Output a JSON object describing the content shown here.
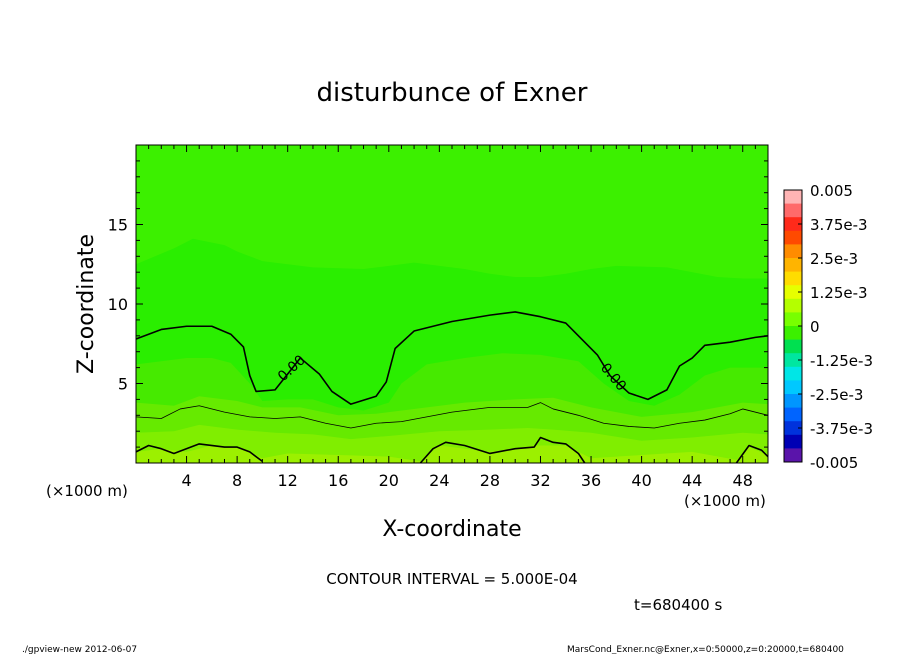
{
  "chart_data": {
    "type": "contour",
    "title": "disturbunce of Exner",
    "xlabel": "X-coordinate",
    "ylabel": "Z-coordinate",
    "x_unit_left": "(×1000 m)",
    "x_unit_right": "(×1000 m)",
    "xlim": [
      0,
      50
    ],
    "ylim": [
      0,
      20
    ],
    "x_ticks": [
      4,
      8,
      12,
      16,
      20,
      24,
      28,
      32,
      36,
      40,
      44,
      48
    ],
    "y_ticks": [
      5,
      10,
      15
    ],
    "contour_interval_text": "CONTOUR INTERVAL = 5.000E-04",
    "time_text": "t=680400 s",
    "contour_labels": [
      "0.00",
      "0.00"
    ],
    "colorbar": {
      "labels": [
        "0.005",
        "3.75e-3",
        "2.5e-3",
        "1.25e-3",
        "0",
        "-1.25e-3",
        "-2.5e-3",
        "-3.75e-3",
        "-0.005"
      ],
      "colors": [
        "#ffb4b4",
        "#ff6a6a",
        "#ff2a1a",
        "#ff4a00",
        "#ff8c00",
        "#ffb400",
        "#ffdc00",
        "#e6ff00",
        "#b4ff00",
        "#78ff00",
        "#3cf000",
        "#00e050",
        "#00e6a0",
        "#00e6e6",
        "#00c8ff",
        "#0096ff",
        "#0064ff",
        "#0032dc",
        "#0000b4",
        "#5a14aa"
      ]
    },
    "contour_lines": [
      {
        "level": "0",
        "points": [
          [
            0,
            7.8
          ],
          [
            2,
            8.4
          ],
          [
            4,
            8.6
          ],
          [
            6,
            8.6
          ],
          [
            7.5,
            8.1
          ],
          [
            8.5,
            7.3
          ],
          [
            9,
            5.5
          ],
          [
            9.5,
            4.5
          ],
          [
            11,
            4.6
          ],
          [
            12,
            5.6
          ],
          [
            13,
            6.6
          ],
          [
            14.5,
            5.6
          ],
          [
            15.5,
            4.5
          ],
          [
            17,
            3.7
          ],
          [
            19,
            4.2
          ],
          [
            19.8,
            5.1
          ],
          [
            20.5,
            7.2
          ],
          [
            22,
            8.3
          ],
          [
            25,
            8.9
          ],
          [
            28,
            9.3
          ],
          [
            30,
            9.5
          ],
          [
            32,
            9.2
          ],
          [
            34,
            8.8
          ],
          [
            35.5,
            7.6
          ],
          [
            36.5,
            6.8
          ],
          [
            37.5,
            5.5
          ],
          [
            39,
            4.4
          ],
          [
            40.5,
            4.0
          ],
          [
            42,
            4.6
          ],
          [
            43,
            6.1
          ],
          [
            44,
            6.6
          ],
          [
            45,
            7.4
          ],
          [
            47,
            7.6
          ],
          [
            49,
            7.9
          ],
          [
            50,
            8.0
          ]
        ]
      },
      {
        "level": "-5e-4",
        "points": [
          [
            0,
            2.9
          ],
          [
            2,
            2.8
          ],
          [
            3.5,
            3.4
          ],
          [
            5,
            3.6
          ],
          [
            7,
            3.2
          ],
          [
            9,
            2.9
          ],
          [
            11,
            2.8
          ],
          [
            13,
            2.9
          ],
          [
            15,
            2.5
          ],
          [
            17,
            2.2
          ],
          [
            19,
            2.5
          ],
          [
            21,
            2.6
          ],
          [
            23,
            2.9
          ],
          [
            25,
            3.2
          ],
          [
            28,
            3.5
          ],
          [
            31,
            3.5
          ],
          [
            32,
            3.8
          ],
          [
            33,
            3.4
          ],
          [
            35,
            3.0
          ],
          [
            37,
            2.5
          ],
          [
            39,
            2.3
          ],
          [
            41,
            2.2
          ],
          [
            43,
            2.5
          ],
          [
            45,
            2.7
          ],
          [
            47,
            3.1
          ],
          [
            48,
            3.4
          ],
          [
            50,
            3.0
          ]
        ]
      },
      {
        "level": "-1e-3",
        "points": [
          [
            0,
            0.7
          ],
          [
            1,
            1.1
          ],
          [
            2,
            0.9
          ],
          [
            3,
            0.6
          ],
          [
            5,
            1.2
          ],
          [
            7,
            1.0
          ],
          [
            8,
            1.0
          ],
          [
            9,
            0.7
          ],
          [
            10,
            0.1
          ]
        ]
      },
      {
        "level": "-1e-3",
        "points": [
          [
            22.5,
            0.0
          ],
          [
            23.5,
            0.9
          ],
          [
            24.5,
            1.3
          ],
          [
            26,
            1.1
          ],
          [
            28,
            0.6
          ],
          [
            30,
            0.9
          ],
          [
            31.5,
            1.0
          ],
          [
            32,
            1.6
          ],
          [
            33,
            1.3
          ],
          [
            34,
            1.2
          ],
          [
            35,
            0.6
          ],
          [
            35.5,
            0.0
          ]
        ]
      },
      {
        "level": "-1e-3",
        "points": [
          [
            47.5,
            0.0
          ],
          [
            48.5,
            1.1
          ],
          [
            49.5,
            0.8
          ],
          [
            50,
            0.4
          ]
        ]
      }
    ],
    "bands": [
      {
        "color": "#2aee00",
        "level_top": "upper",
        "points": [
          [
            0,
            12.5
          ],
          [
            3,
            13.5
          ],
          [
            4.5,
            14.1
          ],
          [
            7,
            13.7
          ],
          [
            8,
            13.3
          ],
          [
            10,
            12.7
          ],
          [
            14,
            12.3
          ],
          [
            18,
            12.2
          ],
          [
            20,
            12.4
          ],
          [
            22,
            12.6
          ],
          [
            24,
            12.4
          ],
          [
            26,
            12.2
          ],
          [
            28,
            11.9
          ],
          [
            30,
            11.7
          ],
          [
            32,
            11.7
          ],
          [
            34,
            11.9
          ],
          [
            36,
            12.2
          ],
          [
            38,
            12.4
          ],
          [
            42,
            12.3
          ],
          [
            46,
            11.7
          ],
          [
            48,
            11.6
          ],
          [
            50,
            11.6
          ]
        ]
      },
      {
        "color": "#46ea00",
        "points": [
          [
            0,
            6.2
          ],
          [
            2,
            6.4
          ],
          [
            4,
            6.6
          ],
          [
            6,
            6.6
          ],
          [
            7.5,
            6.3
          ],
          [
            9,
            5.0
          ],
          [
            10,
            3.9
          ],
          [
            12,
            4.0
          ],
          [
            14,
            4.0
          ],
          [
            16,
            3.5
          ],
          [
            18,
            3.3
          ],
          [
            20,
            3.8
          ],
          [
            21,
            5.0
          ],
          [
            23,
            6.2
          ],
          [
            26,
            6.6
          ],
          [
            29,
            6.9
          ],
          [
            32,
            6.8
          ],
          [
            35,
            6.4
          ],
          [
            37,
            5.0
          ],
          [
            39,
            3.9
          ],
          [
            41,
            3.6
          ],
          [
            43,
            4.3
          ],
          [
            45,
            5.5
          ],
          [
            47,
            6.0
          ],
          [
            50,
            6.0
          ]
        ]
      },
      {
        "color": "#66ea00",
        "points": [
          [
            0,
            3.8
          ],
          [
            3,
            3.6
          ],
          [
            5,
            4.2
          ],
          [
            8,
            3.9
          ],
          [
            10,
            3.5
          ],
          [
            13,
            3.5
          ],
          [
            16,
            3.0
          ],
          [
            19,
            3.1
          ],
          [
            22,
            3.4
          ],
          [
            26,
            3.8
          ],
          [
            30,
            4.0
          ],
          [
            33,
            4.1
          ],
          [
            36,
            3.5
          ],
          [
            40,
            2.9
          ],
          [
            44,
            3.2
          ],
          [
            48,
            3.8
          ],
          [
            50,
            3.7
          ]
        ]
      },
      {
        "color": "#80ee00",
        "points": [
          [
            0,
            1.9
          ],
          [
            3,
            2.0
          ],
          [
            5,
            2.4
          ],
          [
            8,
            2.1
          ],
          [
            11,
            1.9
          ],
          [
            14,
            1.8
          ],
          [
            17,
            1.5
          ],
          [
            20,
            1.7
          ],
          [
            24,
            2.0
          ],
          [
            28,
            2.1
          ],
          [
            31,
            2.2
          ],
          [
            33,
            2.1
          ],
          [
            36,
            1.9
          ],
          [
            40,
            1.4
          ],
          [
            44,
            1.6
          ],
          [
            48,
            1.9
          ],
          [
            50,
            1.8
          ]
        ]
      },
      {
        "color": "#9cf000",
        "points": [
          [
            0,
            0.7
          ],
          [
            2,
            0.9
          ],
          [
            4,
            0.7
          ],
          [
            6,
            1.1
          ],
          [
            8,
            1.0
          ],
          [
            10,
            0.3
          ],
          [
            12,
            0.6
          ],
          [
            16,
            0.5
          ],
          [
            20,
            0.4
          ],
          [
            22.5,
            0.1
          ],
          [
            24,
            1.1
          ],
          [
            28,
            0.7
          ],
          [
            31.5,
            1.1
          ],
          [
            34,
            1.1
          ],
          [
            36,
            0.3
          ],
          [
            40,
            0.5
          ],
          [
            44,
            0.7
          ],
          [
            47.5,
            0.2
          ],
          [
            48.5,
            1.0
          ],
          [
            50,
            0.5
          ]
        ]
      }
    ]
  },
  "footer": {
    "left": "./gpview-new  2012-06-07",
    "right": "MarsCond_Exner.nc@Exner,x=0:50000,z=0:20000,t=680400"
  }
}
